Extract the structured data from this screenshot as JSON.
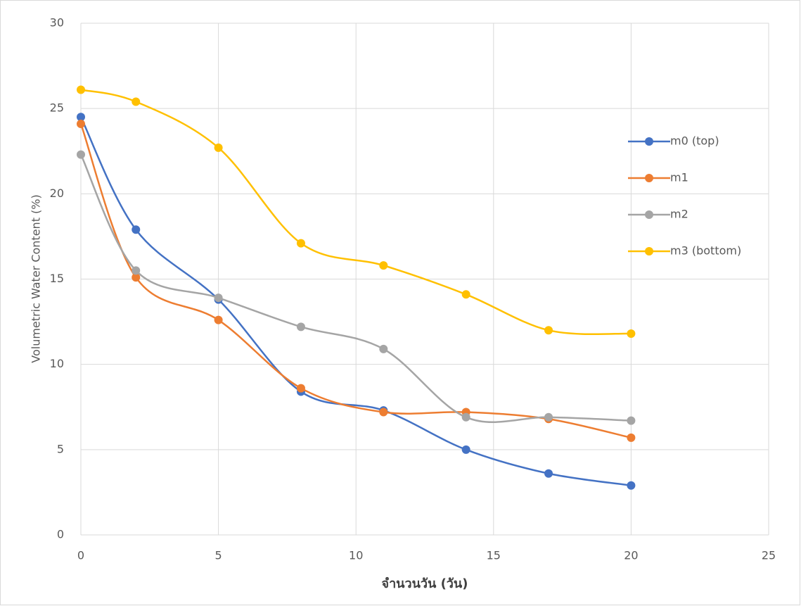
{
  "chart_data": {
    "type": "scatter-smooth",
    "x_label": "จำนวนวัน  (วัน)",
    "y_label": "Volumetric Water Content (%)",
    "xlim": [
      0,
      25
    ],
    "xticks": [
      0,
      5,
      10,
      15,
      20,
      25
    ],
    "ylim": [
      0,
      30
    ],
    "yticks": [
      0,
      5,
      10,
      15,
      20,
      25,
      30
    ],
    "grid": true,
    "legend": "right",
    "x": [
      0,
      2,
      5,
      8,
      11,
      14,
      17,
      20
    ],
    "series": [
      {
        "name": "m0 (top)",
        "color": "#4472c4",
        "values": [
          24.5,
          17.9,
          13.8,
          8.4,
          7.3,
          5.0,
          3.6,
          2.9
        ]
      },
      {
        "name": "m1",
        "color": "#ed7d31",
        "values": [
          24.1,
          15.1,
          12.6,
          8.6,
          7.2,
          7.2,
          6.8,
          5.7
        ]
      },
      {
        "name": "m2",
        "color": "#a5a5a5",
        "values": [
          22.3,
          15.5,
          13.9,
          12.2,
          10.9,
          6.9,
          6.9,
          6.7
        ]
      },
      {
        "name": "m3 (bottom)",
        "color": "#ffc000",
        "values": [
          26.1,
          25.4,
          22.7,
          17.1,
          15.8,
          14.1,
          12.0,
          11.8
        ]
      }
    ]
  }
}
